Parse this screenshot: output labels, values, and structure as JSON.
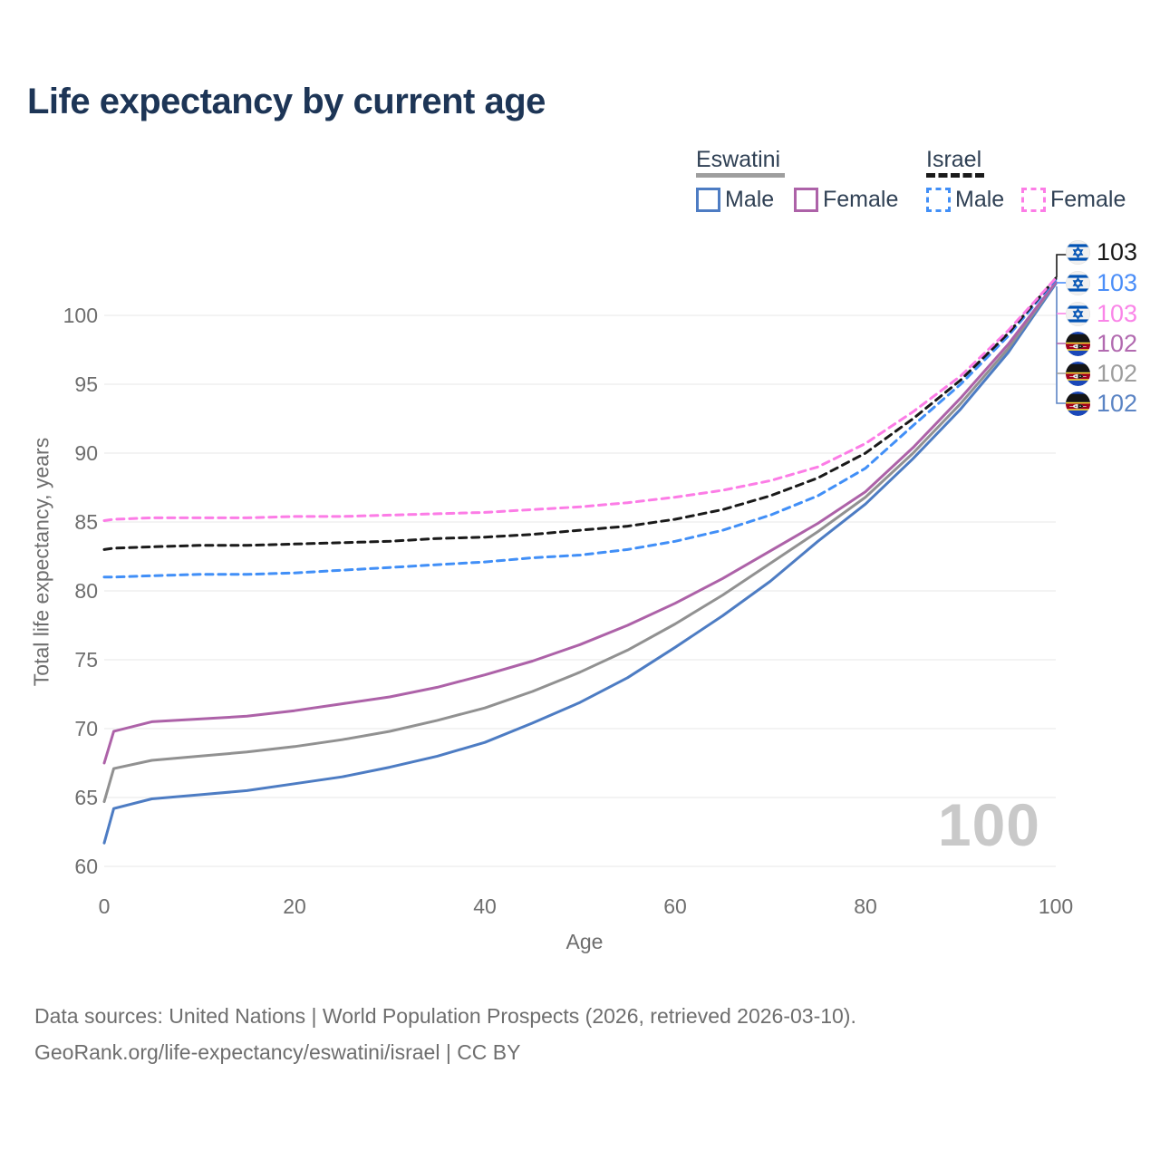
{
  "title": "Life expectancy by current age",
  "legend": {
    "groups": [
      {
        "name": "Eswatini",
        "line_style": "solid",
        "underline_color": "#9e9e9e",
        "items": [
          {
            "label": "Male",
            "color": "#4d7cc3",
            "dashed": false
          },
          {
            "label": "Female",
            "color": "#ad62a8",
            "dashed": false
          }
        ]
      },
      {
        "name": "Israel",
        "line_style": "dashed",
        "underline_color": "#1a1a1a",
        "items": [
          {
            "label": "Male",
            "color": "#418ff7",
            "dashed": true
          },
          {
            "label": "Female",
            "color": "#fc7ce6",
            "dashed": true
          }
        ]
      }
    ]
  },
  "chart_data": {
    "type": "line",
    "title": "Life expectancy by current age",
    "xlabel": "Age",
    "ylabel": "Total life expectancy, years",
    "xlim": [
      0,
      100
    ],
    "ylim": [
      60,
      103
    ],
    "x_ticks": [
      0,
      20,
      40,
      60,
      80,
      100
    ],
    "y_ticks": [
      60,
      65,
      70,
      75,
      80,
      85,
      90,
      95,
      100
    ],
    "grid": "horizontal-only",
    "legend_position": "top-right",
    "x": [
      0,
      1,
      5,
      10,
      15,
      20,
      25,
      30,
      35,
      40,
      45,
      50,
      55,
      60,
      65,
      70,
      75,
      80,
      85,
      90,
      95,
      100
    ],
    "series": [
      {
        "id": "eswatini-male",
        "country": "Eswatini",
        "sex": "Male",
        "color": "#4d7cc3",
        "dashed": false,
        "values": [
          61.7,
          64.2,
          64.9,
          65.2,
          65.5,
          66.0,
          66.5,
          67.2,
          68.0,
          69.0,
          70.4,
          71.9,
          73.7,
          75.9,
          78.2,
          80.7,
          83.6,
          86.3,
          89.6,
          93.2,
          97.3,
          102.3
        ]
      },
      {
        "id": "eswatini-total",
        "country": "Eswatini",
        "sex": "All",
        "color": "#919191",
        "dashed": false,
        "values": [
          64.7,
          67.1,
          67.7,
          68.0,
          68.3,
          68.7,
          69.2,
          69.8,
          70.6,
          71.5,
          72.7,
          74.1,
          75.7,
          77.6,
          79.7,
          82.0,
          84.3,
          86.8,
          90.0,
          93.6,
          97.6,
          102.4
        ]
      },
      {
        "id": "eswatini-female",
        "country": "Eswatini",
        "sex": "Female",
        "color": "#ad62a8",
        "dashed": false,
        "values": [
          67.5,
          69.8,
          70.5,
          70.7,
          70.9,
          71.3,
          71.8,
          72.3,
          73.0,
          73.9,
          74.9,
          76.1,
          77.5,
          79.1,
          80.9,
          82.9,
          84.9,
          87.2,
          90.4,
          94.0,
          97.9,
          102.4
        ]
      },
      {
        "id": "israel-male",
        "country": "Israel",
        "sex": "Male",
        "color": "#418ff7",
        "dashed": true,
        "values": [
          81.0,
          81.0,
          81.1,
          81.2,
          81.2,
          81.3,
          81.5,
          81.7,
          81.9,
          82.1,
          82.4,
          82.6,
          83.0,
          83.6,
          84.4,
          85.5,
          86.9,
          88.9,
          92.0,
          95.0,
          98.5,
          102.6
        ]
      },
      {
        "id": "israel-total",
        "country": "Israel",
        "sex": "All",
        "color": "#1a1a1a",
        "dashed": true,
        "values": [
          83.0,
          83.1,
          83.2,
          83.3,
          83.3,
          83.4,
          83.5,
          83.6,
          83.8,
          83.9,
          84.1,
          84.4,
          84.7,
          85.2,
          85.9,
          86.9,
          88.2,
          90.0,
          92.5,
          95.3,
          98.7,
          102.7
        ]
      },
      {
        "id": "israel-female",
        "country": "Israel",
        "sex": "Female",
        "color": "#fc7ce6",
        "dashed": true,
        "values": [
          85.1,
          85.2,
          85.3,
          85.3,
          85.3,
          85.4,
          85.4,
          85.5,
          85.6,
          85.7,
          85.9,
          86.1,
          86.4,
          86.8,
          87.3,
          88.0,
          89.0,
          90.7,
          93.0,
          95.6,
          98.9,
          102.7
        ]
      }
    ],
    "age_annotation": "100"
  },
  "end_labels": [
    {
      "country": "Israel",
      "flag": "israel",
      "value": "103",
      "color": "#1a1a1a"
    },
    {
      "country": "Israel",
      "flag": "israel",
      "value": "103",
      "color": "#4b8ef8"
    },
    {
      "country": "Israel",
      "flag": "israel",
      "value": "103",
      "color": "#fa85e8"
    },
    {
      "country": "Eswatini",
      "flag": "eswatini",
      "value": "102",
      "color": "#b26ab0"
    },
    {
      "country": "Eswatini",
      "flag": "eswatini",
      "value": "102",
      "color": "#9e9e9e"
    },
    {
      "country": "Eswatini",
      "flag": "eswatini",
      "value": "102",
      "color": "#5b84c4"
    }
  ],
  "axes": {
    "x_title": "Age",
    "y_title": "Total life expectancy, years"
  },
  "footer": {
    "line1": "Data sources: United Nations | World Population Prospects (2026, retrieved 2026-03-10).",
    "line2": "GeoRank.org/life-expectancy/eswatini/israel | CC BY"
  }
}
